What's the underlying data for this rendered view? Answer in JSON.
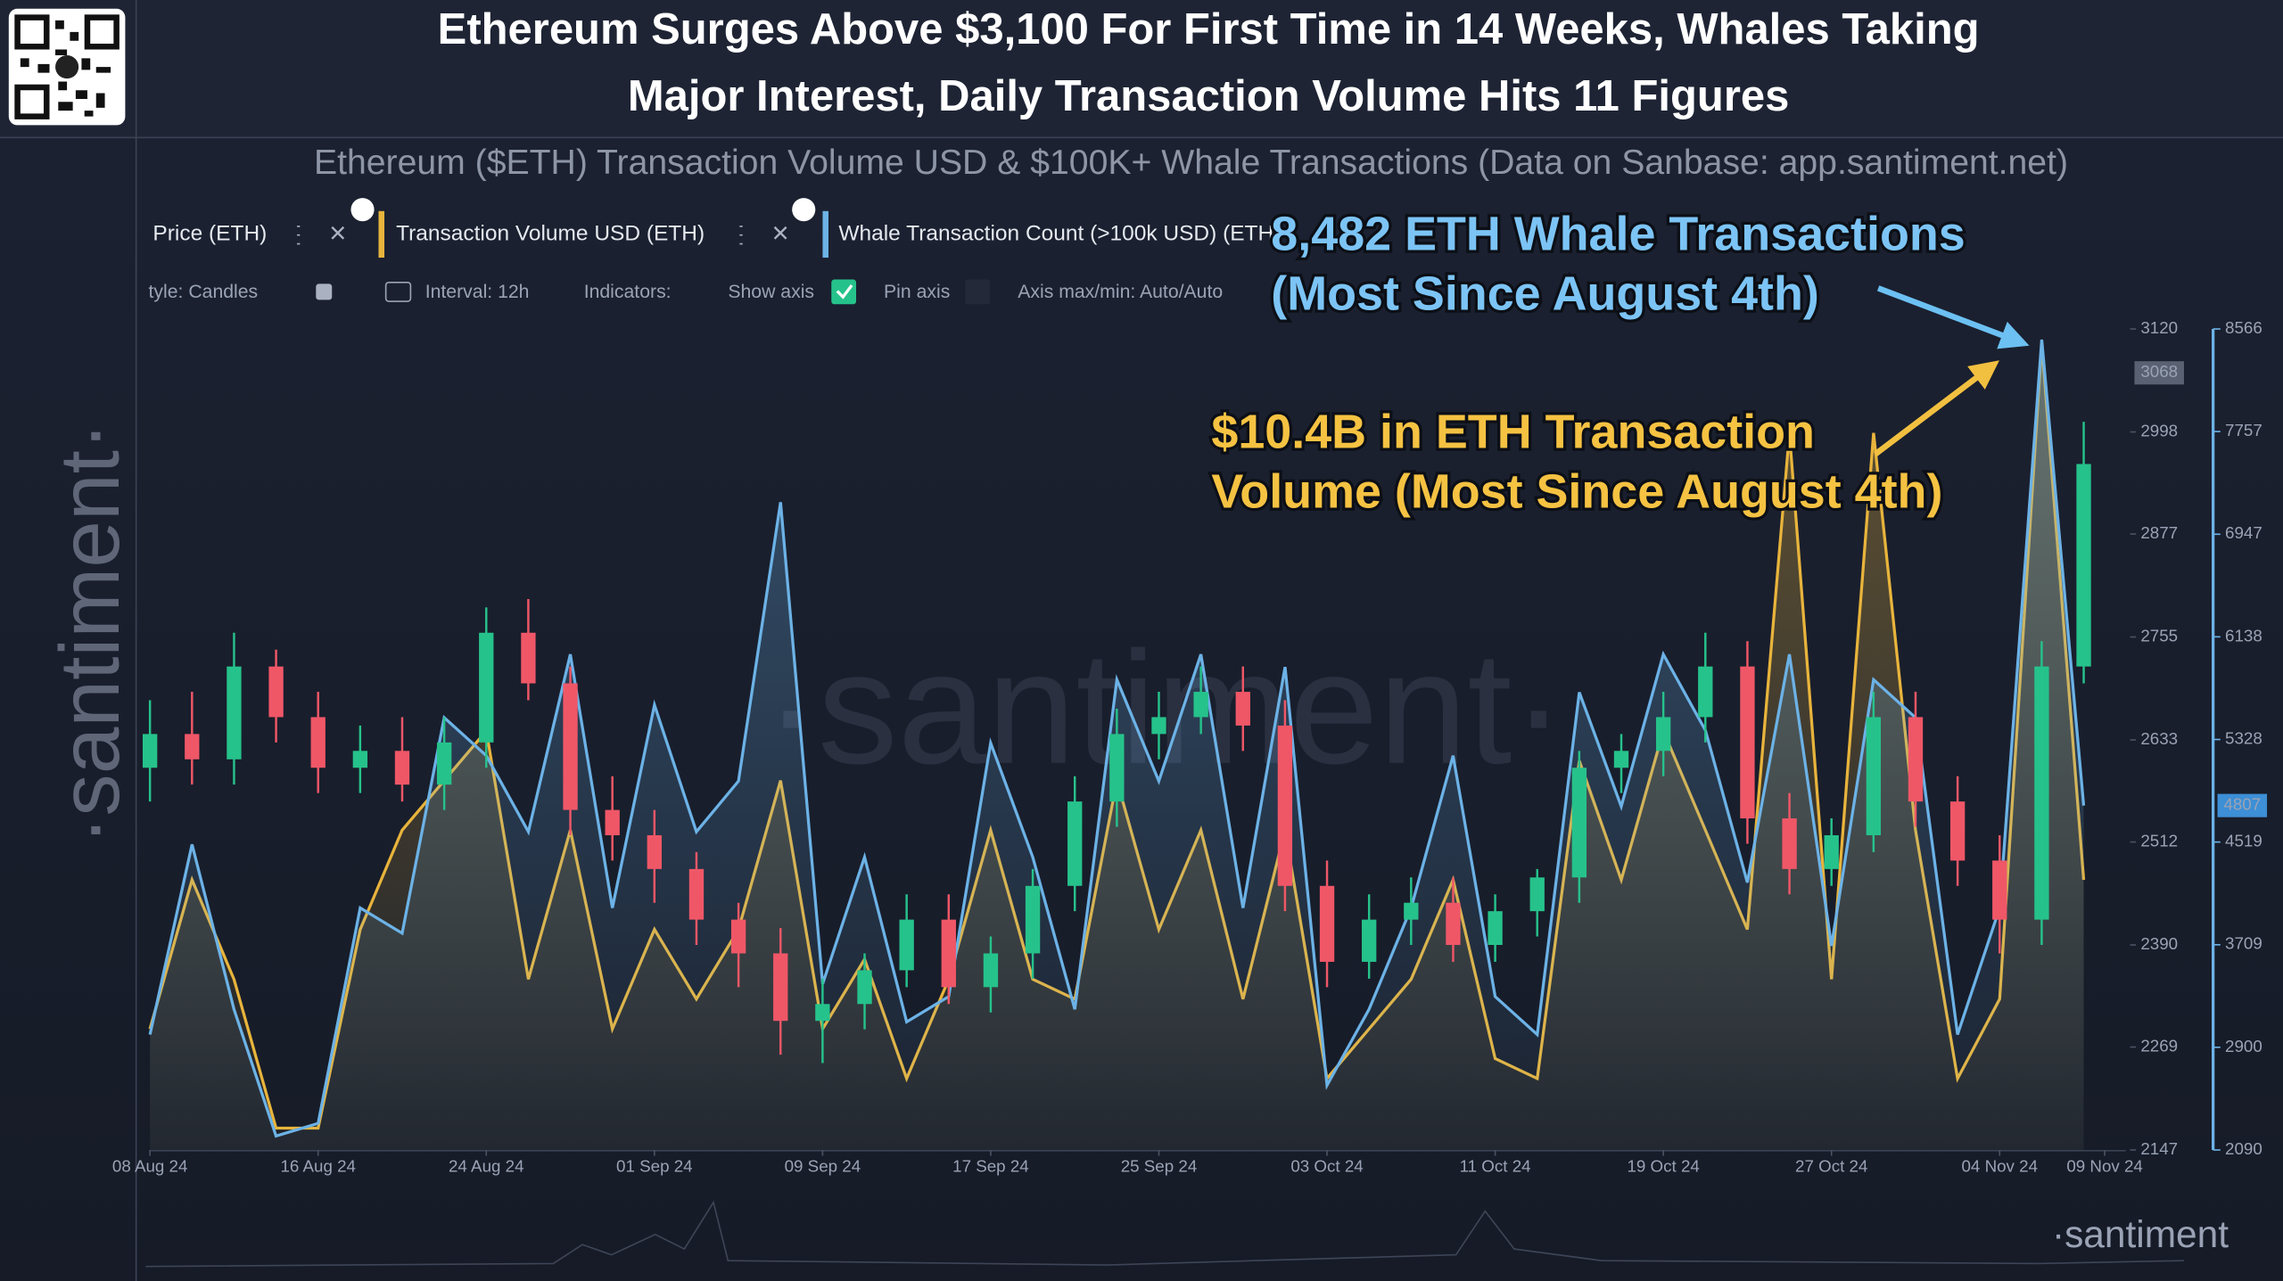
{
  "chart_data": {
    "type": "candlestick",
    "title": [
      "Ethereum Surges Above $3,100 For First Time in 14 Weeks, Whales Taking",
      "Major Interest, Daily Transaction Volume Hits 11 Figures"
    ],
    "subtitle": "Ethereum ($ETH) Transaction Volume USD & $100K+ Whale Transactions (Data on Sanbase: app.santiment.net)",
    "x": [
      "2024-08-08",
      "2024-08-10",
      "2024-08-12",
      "2024-08-14",
      "2024-08-16",
      "2024-08-18",
      "2024-08-20",
      "2024-08-22",
      "2024-08-24",
      "2024-08-26",
      "2024-08-28",
      "2024-08-30",
      "2024-09-01",
      "2024-09-03",
      "2024-09-05",
      "2024-09-07",
      "2024-09-09",
      "2024-09-11",
      "2024-09-13",
      "2024-09-15",
      "2024-09-17",
      "2024-09-19",
      "2024-09-21",
      "2024-09-23",
      "2024-09-25",
      "2024-09-27",
      "2024-09-29",
      "2024-10-01",
      "2024-10-03",
      "2024-10-05",
      "2024-10-07",
      "2024-10-09",
      "2024-10-11",
      "2024-10-13",
      "2024-10-15",
      "2024-10-17",
      "2024-10-19",
      "2024-10-21",
      "2024-10-23",
      "2024-10-25",
      "2024-10-27",
      "2024-10-29",
      "2024-10-31",
      "2024-11-02",
      "2024-11-04",
      "2024-11-06",
      "2024-11-08"
    ],
    "xlim": [
      "2024-08-08",
      "2024-11-10"
    ],
    "xticks": [
      {
        "value": "2024-08-08",
        "label": "08 Aug 24"
      },
      {
        "value": "2024-08-16",
        "label": "16 Aug 24"
      },
      {
        "value": "2024-08-24",
        "label": "24 Aug 24"
      },
      {
        "value": "2024-09-01",
        "label": "01 Sep 24"
      },
      {
        "value": "2024-09-09",
        "label": "09 Sep 24"
      },
      {
        "value": "2024-09-17",
        "label": "17 Sep 24"
      },
      {
        "value": "2024-09-25",
        "label": "25 Sep 24"
      },
      {
        "value": "2024-10-03",
        "label": "03 Oct 24"
      },
      {
        "value": "2024-10-11",
        "label": "11 Oct 24"
      },
      {
        "value": "2024-10-19",
        "label": "19 Oct 24"
      },
      {
        "value": "2024-10-27",
        "label": "27 Oct 24"
      },
      {
        "value": "2024-11-04",
        "label": "04 Nov 24"
      },
      {
        "value": "2024-11-09",
        "label": "09 Nov 24"
      }
    ],
    "ylim": [
      2147,
      3120
    ],
    "yticks": [
      2147,
      2269,
      2390,
      2512,
      2633,
      2755,
      2877,
      2998,
      3120
    ],
    "y2lim": [
      2090,
      8566
    ],
    "y2ticks": [
      2090,
      2900,
      3709,
      4519,
      5328,
      6138,
      6947,
      7757,
      8566
    ],
    "grid": false,
    "series": [
      {
        "name": "Price (ETH)",
        "up_color": "#26c28b",
        "down_color": "#ef5767",
        "open": [
          2600,
          2640,
          2610,
          2720,
          2660,
          2600,
          2620,
          2580,
          2630,
          2760,
          2700,
          2550,
          2520,
          2480,
          2420,
          2380,
          2300,
          2320,
          2360,
          2420,
          2340,
          2380,
          2460,
          2560,
          2640,
          2660,
          2690,
          2650,
          2460,
          2370,
          2420,
          2440,
          2390,
          2430,
          2470,
          2600,
          2620,
          2660,
          2720,
          2540,
          2480,
          2520,
          2660,
          2560,
          2490,
          2420,
          2720
        ],
        "high": [
          2680,
          2690,
          2760,
          2740,
          2690,
          2650,
          2660,
          2660,
          2790,
          2800,
          2720,
          2590,
          2550,
          2500,
          2440,
          2410,
          2350,
          2380,
          2450,
          2450,
          2400,
          2480,
          2590,
          2670,
          2690,
          2720,
          2720,
          2680,
          2490,
          2450,
          2470,
          2470,
          2450,
          2480,
          2620,
          2640,
          2690,
          2760,
          2750,
          2570,
          2540,
          2690,
          2690,
          2590,
          2520,
          2750,
          3010
        ],
        "low": [
          2560,
          2580,
          2580,
          2630,
          2570,
          2570,
          2560,
          2550,
          2600,
          2680,
          2520,
          2490,
          2440,
          2390,
          2340,
          2260,
          2250,
          2290,
          2340,
          2320,
          2310,
          2350,
          2430,
          2530,
          2610,
          2640,
          2620,
          2430,
          2340,
          2350,
          2390,
          2370,
          2370,
          2400,
          2440,
          2570,
          2590,
          2630,
          2510,
          2450,
          2460,
          2500,
          2530,
          2460,
          2380,
          2390,
          2700
        ],
        "close": [
          2640,
          2610,
          2720,
          2660,
          2600,
          2620,
          2580,
          2630,
          2760,
          2700,
          2550,
          2520,
          2480,
          2420,
          2380,
          2300,
          2320,
          2360,
          2420,
          2340,
          2380,
          2460,
          2560,
          2640,
          2660,
          2690,
          2650,
          2460,
          2370,
          2420,
          2440,
          2390,
          2430,
          2470,
          2600,
          2620,
          2660,
          2720,
          2540,
          2480,
          2520,
          2660,
          2560,
          2490,
          2420,
          2720,
          2960
        ]
      },
      {
        "name": "Transaction Volume USD (ETH)",
        "color": "#e8b43c",
        "values": [
          3.5,
          5,
          4,
          2.5,
          2.5,
          4.5,
          5.5,
          6,
          6.5,
          4,
          5.5,
          3.5,
          4.5,
          3.8,
          4.5,
          6,
          3.5,
          4.2,
          3,
          4,
          5.5,
          4,
          3.8,
          6,
          4.5,
          5.5,
          3.8,
          5.5,
          3,
          3.5,
          4,
          5,
          3.2,
          3,
          6.2,
          5,
          6.5,
          5.5,
          4.5,
          9.5,
          4,
          9.5,
          5.5,
          3,
          3.8,
          10.4,
          5
        ]
      },
      {
        "name": "Whale Transaction Count (>100k USD) (ETH)",
        "color": "#6cb2e6",
        "axis": "y2",
        "values": [
          3000,
          4500,
          3200,
          2200,
          2300,
          4000,
          3800,
          5500,
          5200,
          4600,
          6000,
          4000,
          5600,
          4600,
          5000,
          7200,
          3400,
          4400,
          3100,
          3300,
          5300,
          4400,
          3200,
          5800,
          5000,
          6000,
          4000,
          5900,
          2600,
          3200,
          4000,
          5200,
          3300,
          3000,
          5700,
          4800,
          6000,
          5400,
          4200,
          6000,
          3700,
          5800,
          5500,
          3000,
          4000,
          8482,
          4807
        ]
      }
    ],
    "price_tag": 3068,
    "whale_tag": 4807,
    "annotations": {
      "whale": [
        "8,482 ETH Whale Transactions",
        "(Most Since August 4th)"
      ],
      "volume": [
        "$10.4B in ETH Transaction",
        "Volume (Most Since August 4th)"
      ]
    }
  },
  "ui": {
    "toolbar": {
      "style": "tyle: Candles",
      "interval": "Interval: 12h",
      "indicators": "Indicators:",
      "show_axis": "Show axis",
      "pin_axis": "Pin axis",
      "axis_range": "Axis max/min: Auto/Auto"
    },
    "watermark": "·santiment·",
    "logo": "·santiment"
  }
}
